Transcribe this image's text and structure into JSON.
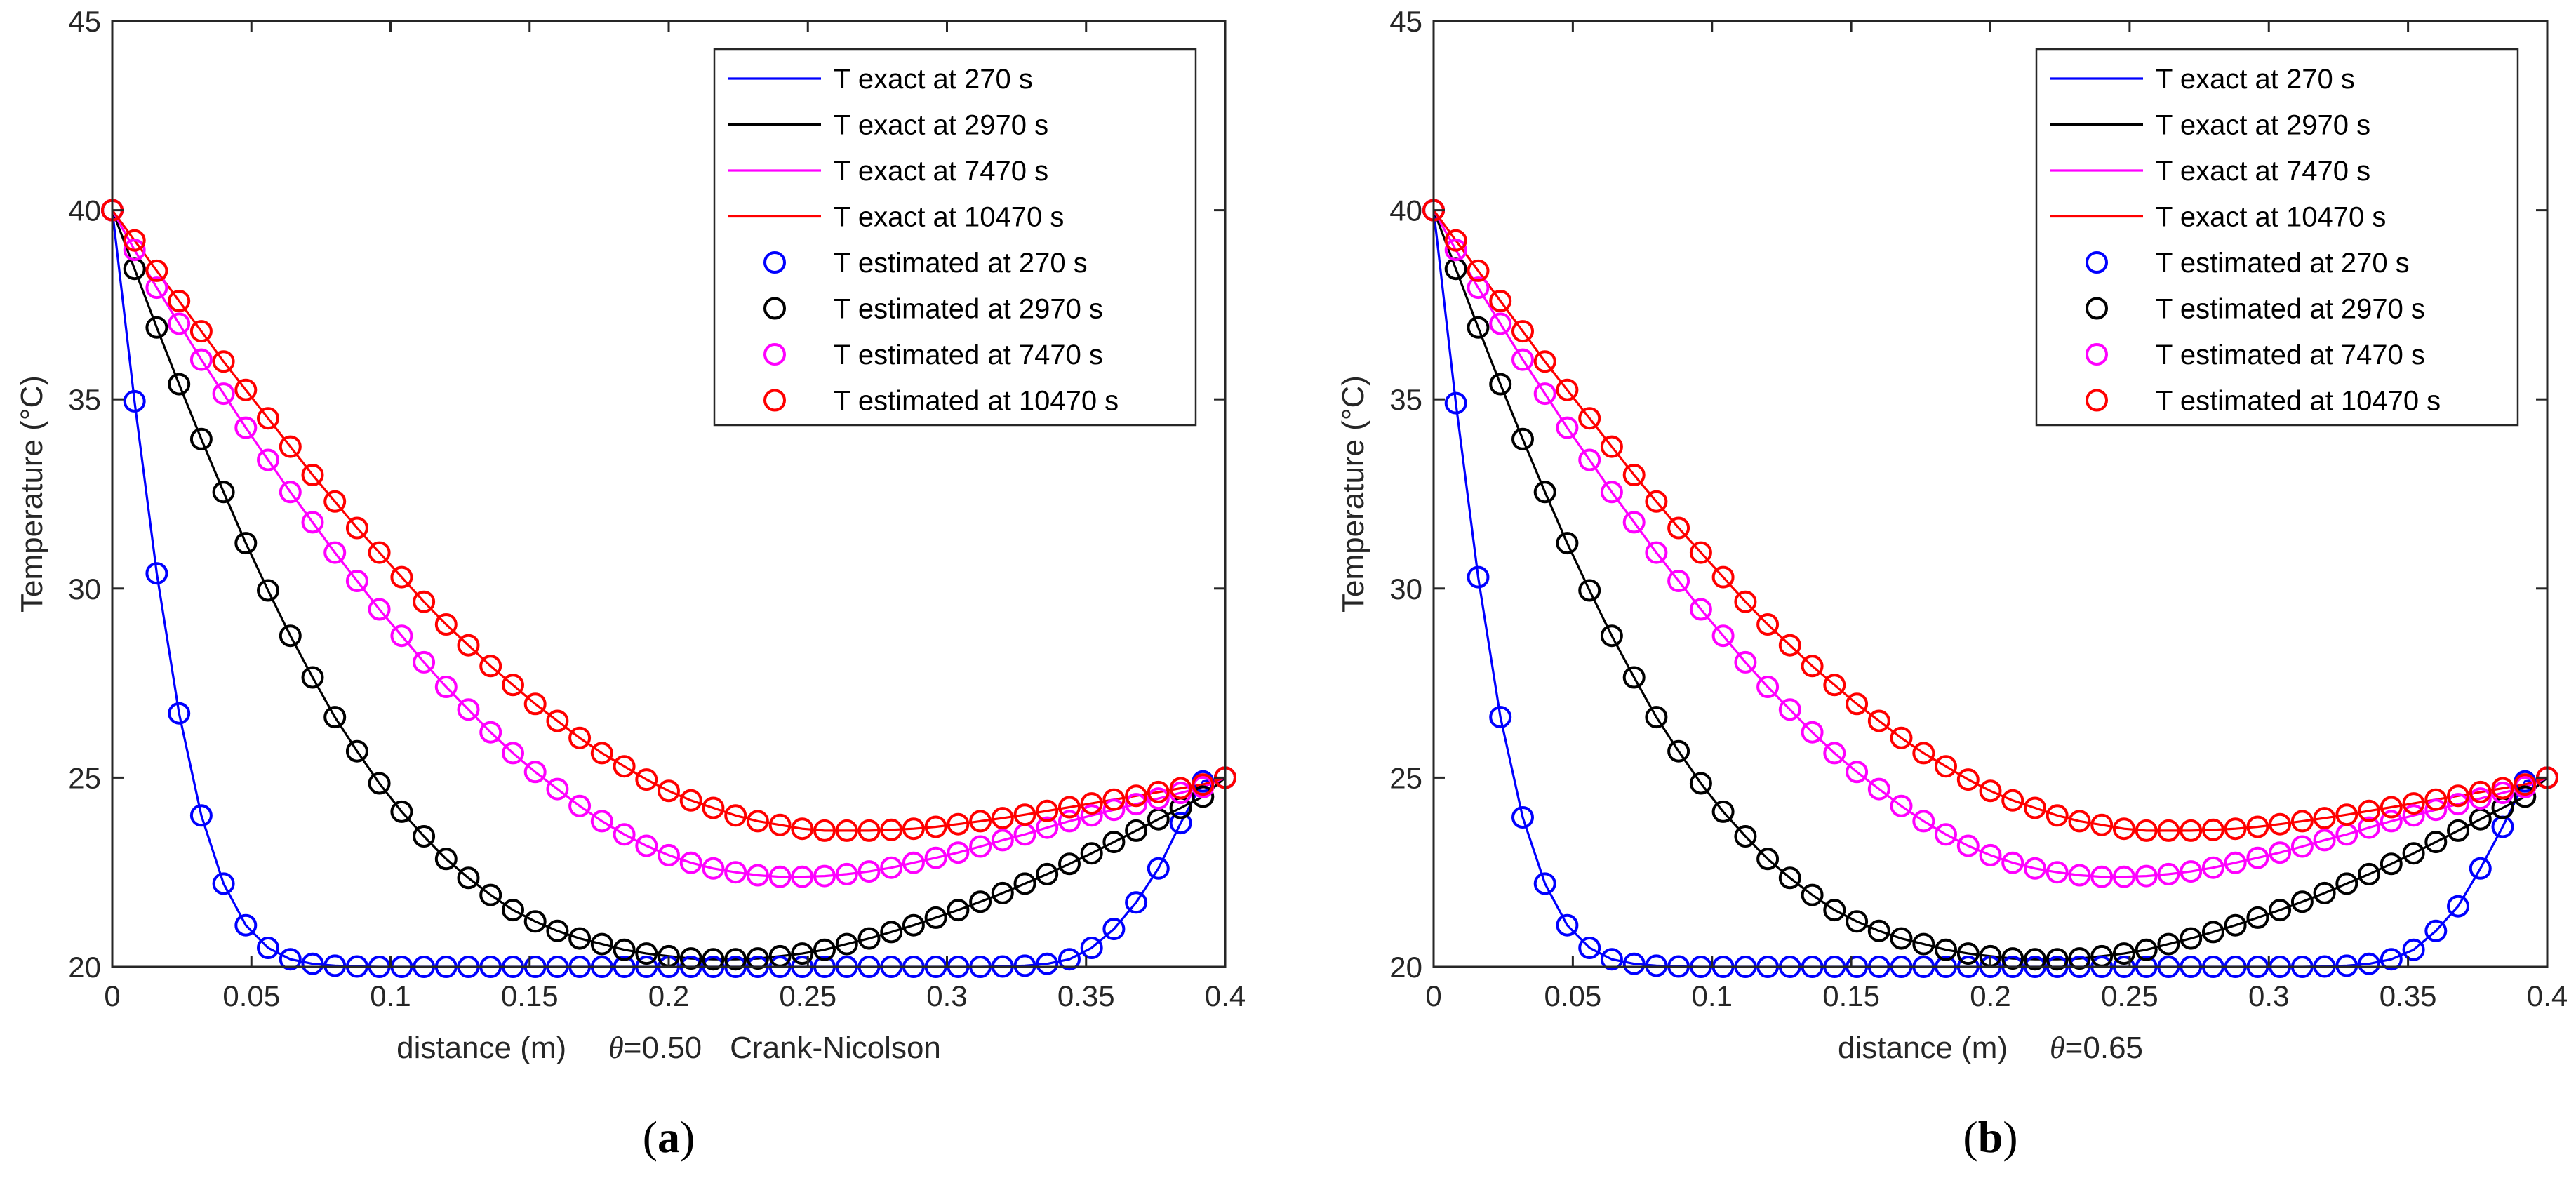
{
  "chart_data": [
    {
      "type": "line",
      "panel_label_letter": "a",
      "xlabel": "distance (m)",
      "theta_symbol": "θ",
      "theta_value": "=0.50",
      "method": "Crank-Nicolson",
      "ylabel": "Temperature (°C)",
      "xlim": [
        0,
        0.4
      ],
      "ylim": [
        20,
        45
      ],
      "x_ticks": [
        "0",
        "0.05",
        "0.1",
        "0.15",
        "0.2",
        "0.25",
        "0.3",
        "0.35",
        "0.4"
      ],
      "y_ticks": [
        "20",
        "25",
        "30",
        "35",
        "40",
        "45"
      ],
      "x_step": 0.008,
      "series": [
        {
          "name": "T exact at 270 s",
          "estimated_name": "T estimated at 270 s",
          "color": "#0000ff",
          "values": [
            40,
            34.95,
            30.4,
            26.7,
            24.0,
            22.2,
            21.1,
            20.5,
            20.2,
            20.08,
            20.03,
            20.01,
            20.0,
            20.0,
            20.0,
            20.0,
            20.0,
            20.0,
            20.0,
            20.0,
            20.0,
            20.0,
            20.0,
            20.0,
            20.0,
            20.0,
            20.0,
            20.0,
            20.0,
            20.0,
            20.0,
            20.0,
            20.0,
            20.0,
            20.0,
            20.0,
            20.0,
            20.0,
            20.0,
            20.0,
            20.01,
            20.03,
            20.08,
            20.2,
            20.5,
            21.0,
            21.7,
            22.6,
            23.8,
            24.9
          ]
        },
        {
          "name": "T exact at 2970 s",
          "estimated_name": "T estimated at 2970 s",
          "color": "#000000",
          "values": [
            40,
            38.45,
            36.9,
            35.4,
            33.95,
            32.55,
            31.2,
            29.95,
            28.75,
            27.65,
            26.6,
            25.7,
            24.85,
            24.1,
            23.45,
            22.85,
            22.35,
            21.9,
            21.5,
            21.2,
            20.95,
            20.75,
            20.6,
            20.45,
            20.35,
            20.28,
            20.22,
            20.2,
            20.2,
            20.22,
            20.28,
            20.35,
            20.45,
            20.6,
            20.75,
            20.92,
            21.1,
            21.3,
            21.5,
            21.72,
            21.95,
            22.2,
            22.45,
            22.72,
            23.0,
            23.3,
            23.6,
            23.9,
            24.2,
            24.5
          ]
        },
        {
          "name": "T exact at 7470 s",
          "estimated_name": "T estimated at 7470 s",
          "color": "#ff00ff",
          "values": [
            40,
            38.95,
            37.95,
            37.0,
            36.05,
            35.15,
            34.25,
            33.4,
            32.55,
            31.75,
            30.95,
            30.2,
            29.45,
            28.75,
            28.05,
            27.4,
            26.8,
            26.2,
            25.65,
            25.15,
            24.7,
            24.25,
            23.85,
            23.5,
            23.2,
            22.95,
            22.75,
            22.6,
            22.5,
            22.42,
            22.38,
            22.38,
            22.4,
            22.45,
            22.52,
            22.62,
            22.75,
            22.88,
            23.02,
            23.18,
            23.35,
            23.5,
            23.68,
            23.85,
            24.0,
            24.15,
            24.3,
            24.45,
            24.6,
            24.75
          ]
        },
        {
          "name": "T exact at 10470 s",
          "estimated_name": "T estimated at 10470 s",
          "color": "#ff0000",
          "values": [
            40,
            39.2,
            38.4,
            37.6,
            36.8,
            36.0,
            35.25,
            34.5,
            33.75,
            33.0,
            32.3,
            31.6,
            30.95,
            30.3,
            29.65,
            29.05,
            28.5,
            27.95,
            27.45,
            26.95,
            26.5,
            26.05,
            25.65,
            25.3,
            24.95,
            24.65,
            24.4,
            24.2,
            24.0,
            23.85,
            23.75,
            23.65,
            23.6,
            23.6,
            23.6,
            23.62,
            23.65,
            23.7,
            23.77,
            23.85,
            23.93,
            24.02,
            24.12,
            24.22,
            24.32,
            24.42,
            24.52,
            24.62,
            24.72,
            24.82
          ]
        }
      ],
      "end_value": 25
    },
    {
      "type": "line",
      "panel_label_letter": "b",
      "xlabel": "distance (m)",
      "theta_symbol": "θ",
      "theta_value": "=0.65",
      "ylabel": "Temperature (°C)",
      "xlim": [
        0,
        0.4
      ],
      "ylim": [
        20,
        45
      ],
      "x_ticks": [
        "0",
        "0.05",
        "0.1",
        "0.15",
        "0.2",
        "0.25",
        "0.3",
        "0.35",
        "0.4"
      ],
      "y_ticks": [
        "20",
        "25",
        "30",
        "35",
        "40",
        "45"
      ],
      "x_step": 0.008,
      "series": [
        {
          "name": "T exact at 270 s",
          "estimated_name": "T estimated at 270 s",
          "color": "#0000ff",
          "values": [
            40,
            34.9,
            30.3,
            26.6,
            23.95,
            22.2,
            21.1,
            20.5,
            20.2,
            20.08,
            20.03,
            20.01,
            20.0,
            20.0,
            20.0,
            20.0,
            20.0,
            20.0,
            20.0,
            20.0,
            20.0,
            20.0,
            20.0,
            20.0,
            20.0,
            20.0,
            20.0,
            20.0,
            20.0,
            20.0,
            20.0,
            20.0,
            20.0,
            20.0,
            20.0,
            20.0,
            20.0,
            20.0,
            20.0,
            20.0,
            20.01,
            20.03,
            20.08,
            20.2,
            20.45,
            20.95,
            21.6,
            22.6,
            23.7,
            24.9
          ]
        },
        {
          "name": "T exact at 2970 s",
          "estimated_name": "T estimated at 2970 s",
          "color": "#000000",
          "values": [
            40,
            38.45,
            36.9,
            35.4,
            33.95,
            32.55,
            31.2,
            29.95,
            28.75,
            27.65,
            26.6,
            25.7,
            24.85,
            24.1,
            23.45,
            22.85,
            22.35,
            21.9,
            21.5,
            21.2,
            20.95,
            20.75,
            20.6,
            20.45,
            20.35,
            20.28,
            20.22,
            20.2,
            20.2,
            20.22,
            20.28,
            20.35,
            20.45,
            20.6,
            20.75,
            20.92,
            21.1,
            21.3,
            21.5,
            21.72,
            21.95,
            22.2,
            22.45,
            22.72,
            23.0,
            23.3,
            23.6,
            23.9,
            24.2,
            24.5
          ]
        },
        {
          "name": "T exact at 7470 s",
          "estimated_name": "T estimated at 7470 s",
          "color": "#ff00ff",
          "values": [
            40,
            38.95,
            37.95,
            37.0,
            36.05,
            35.15,
            34.25,
            33.4,
            32.55,
            31.75,
            30.95,
            30.2,
            29.45,
            28.75,
            28.05,
            27.4,
            26.8,
            26.2,
            25.65,
            25.15,
            24.7,
            24.25,
            23.85,
            23.5,
            23.2,
            22.95,
            22.75,
            22.6,
            22.5,
            22.42,
            22.38,
            22.38,
            22.4,
            22.45,
            22.52,
            22.62,
            22.75,
            22.88,
            23.02,
            23.18,
            23.35,
            23.5,
            23.68,
            23.85,
            24.0,
            24.15,
            24.3,
            24.45,
            24.6,
            24.75
          ]
        },
        {
          "name": "T exact at 10470 s",
          "estimated_name": "T estimated at 10470 s",
          "color": "#ff0000",
          "values": [
            40,
            39.2,
            38.4,
            37.6,
            36.8,
            36.0,
            35.25,
            34.5,
            33.75,
            33.0,
            32.3,
            31.6,
            30.95,
            30.3,
            29.65,
            29.05,
            28.5,
            27.95,
            27.45,
            26.95,
            26.5,
            26.05,
            25.65,
            25.3,
            24.95,
            24.65,
            24.4,
            24.2,
            24.0,
            23.85,
            23.75,
            23.65,
            23.6,
            23.6,
            23.6,
            23.62,
            23.65,
            23.7,
            23.77,
            23.85,
            23.93,
            24.02,
            24.12,
            24.22,
            24.32,
            24.42,
            24.52,
            24.62,
            24.72,
            24.82
          ]
        }
      ],
      "end_value": 25
    }
  ]
}
